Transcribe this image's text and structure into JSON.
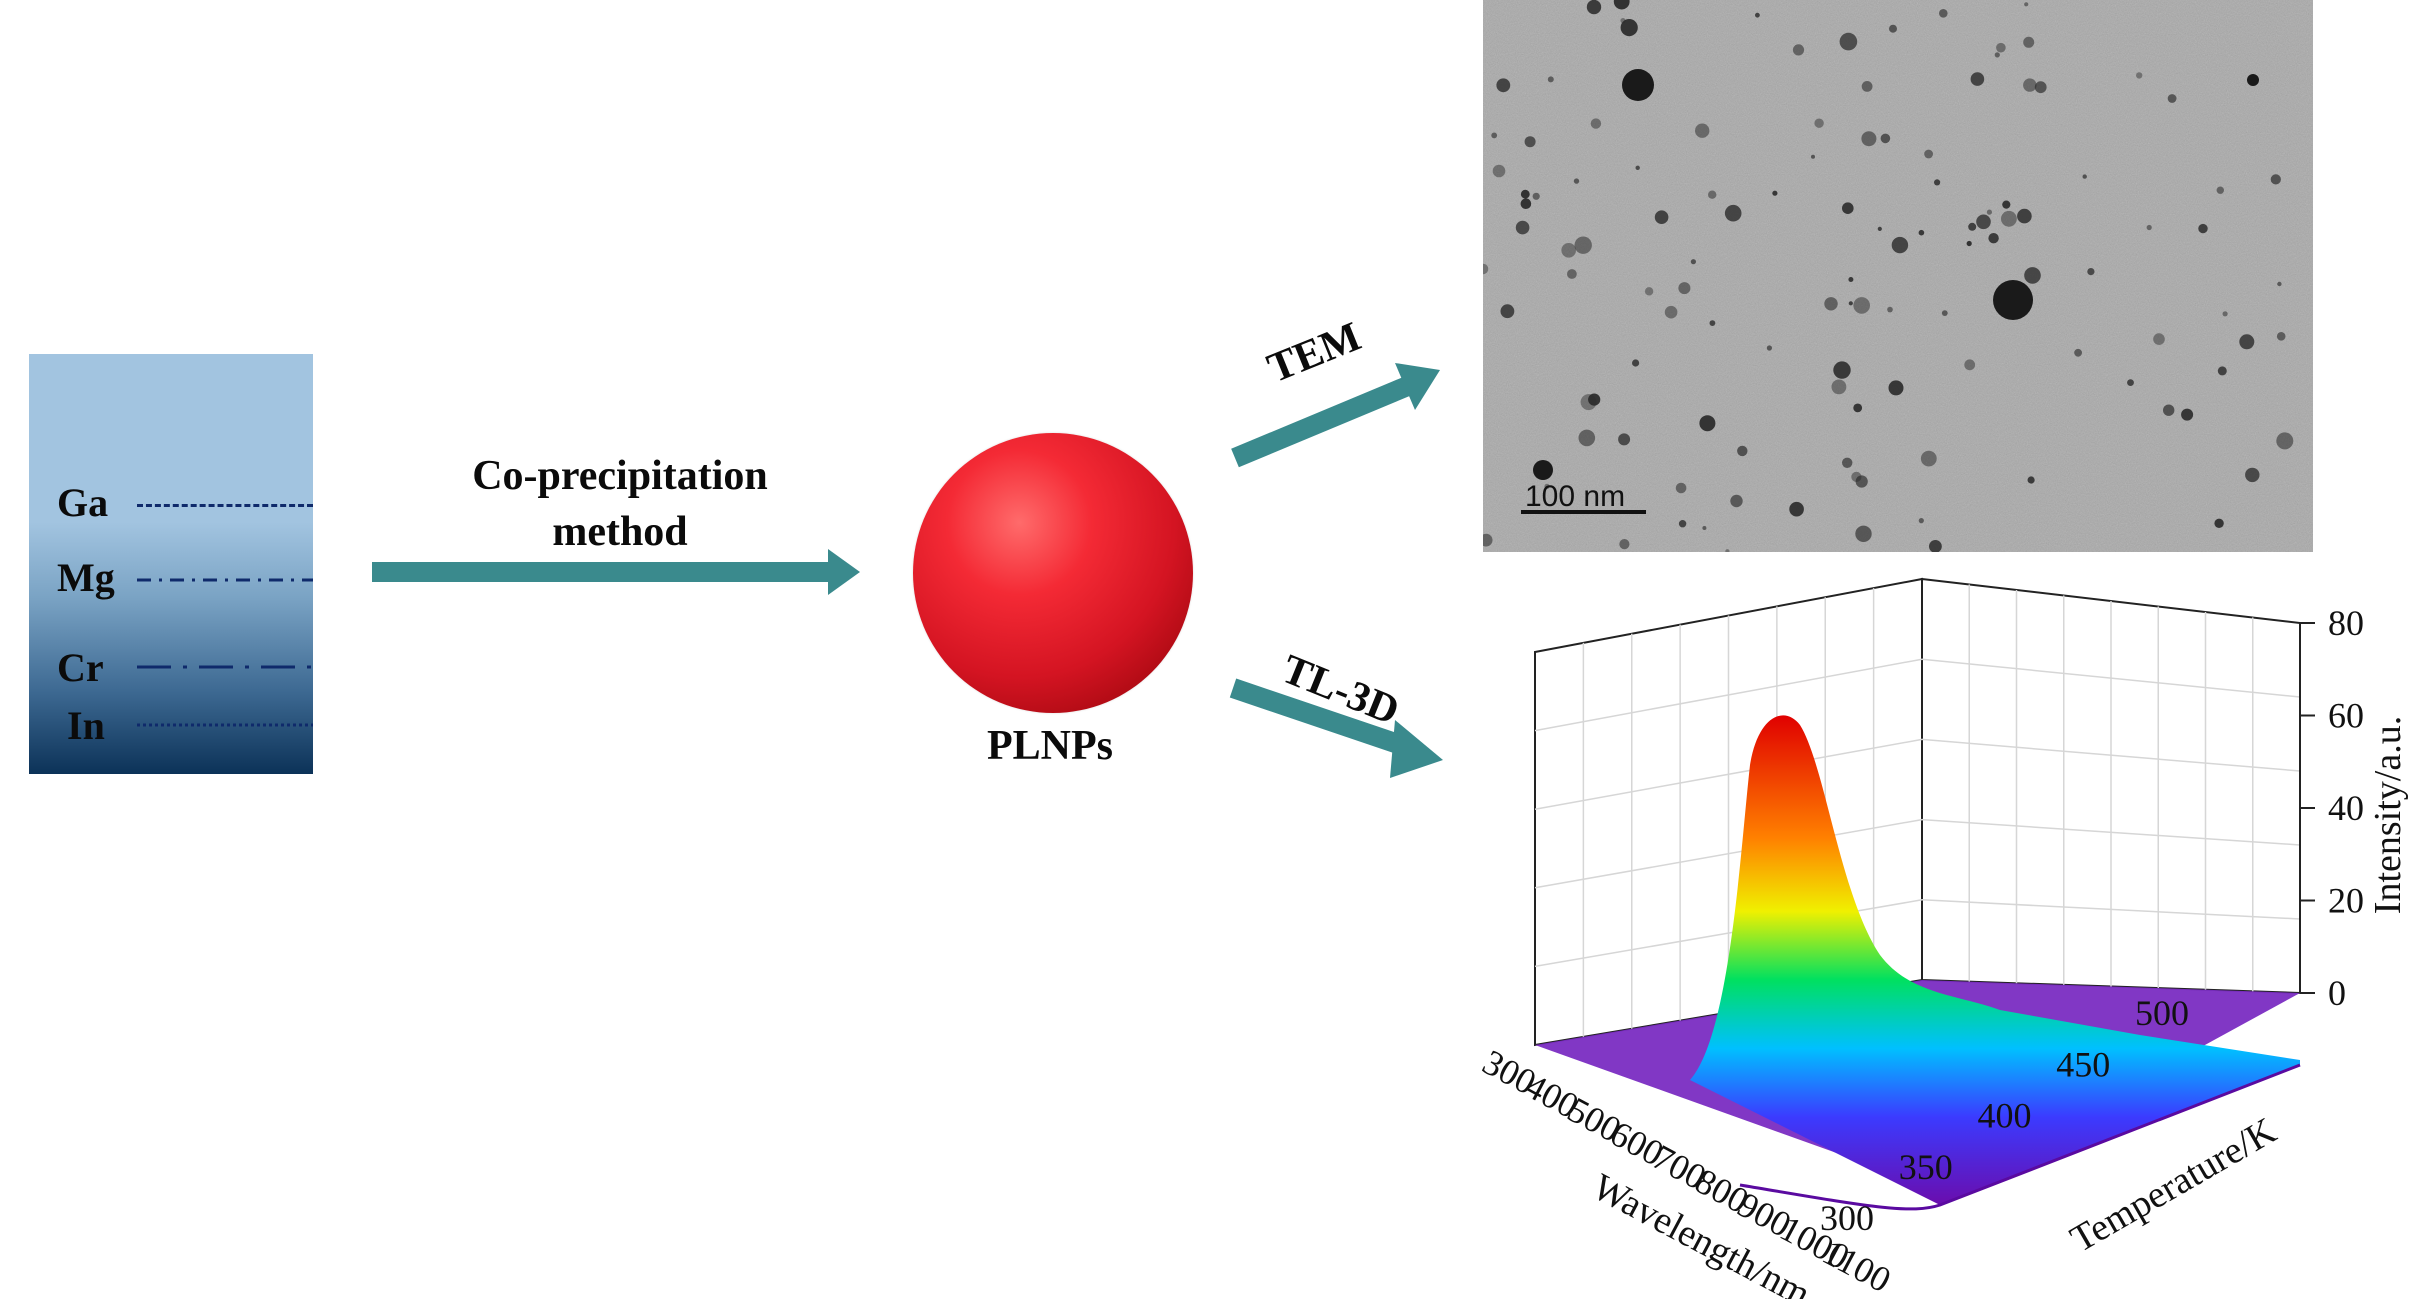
{
  "precursor": {
    "elements": [
      {
        "symbol": "Ga",
        "line_style": "dashed"
      },
      {
        "symbol": "Mg",
        "line_style": "dash-dot"
      },
      {
        "symbol": "Cr",
        "line_style": "long-dash-dot"
      },
      {
        "symbol": "In",
        "line_style": "dotted"
      }
    ],
    "line_color": "#0f2a6b"
  },
  "process": {
    "label_line1": "Co-precipitation",
    "label_line2": "method"
  },
  "product": {
    "label": "PLNPs",
    "color": "#e8202c"
  },
  "branches": {
    "tem_label": "TEM",
    "tl_label": "TL-3D",
    "arrow_color": "#3a8a8d"
  },
  "tem_image": {
    "scale_bar_label": "100 nm"
  },
  "chart_data": {
    "type": "surface3d",
    "x_axis": {
      "label": "Wavelength/nm",
      "ticks": [
        "300",
        "400",
        "500",
        "600",
        "700",
        "800",
        "900",
        "1000",
        "1100"
      ],
      "range": [
        300,
        1100
      ]
    },
    "y_axis": {
      "label": "Temperature/K",
      "ticks": [
        "300",
        "350",
        "400",
        "450",
        "500"
      ],
      "range": [
        300,
        500
      ]
    },
    "z_axis": {
      "label": "Intensity/a.u.",
      "ticks": [
        "0",
        "20",
        "40",
        "60",
        "80"
      ],
      "range": [
        0,
        80
      ]
    },
    "peak": {
      "wavelength": 700,
      "temperature": 350,
      "intensity": 62
    },
    "colormap": [
      "#6a0dad",
      "#3b3bff",
      "#00c0ff",
      "#00e060",
      "#f0f000",
      "#ff8000",
      "#e00000"
    ]
  }
}
